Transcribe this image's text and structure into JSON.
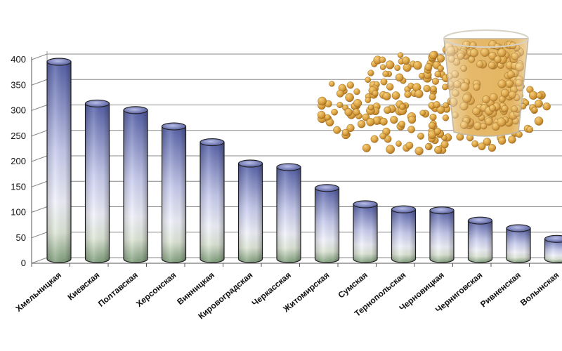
{
  "chart_data": {
    "type": "bar",
    "style": "3d-cylinder",
    "grid": true,
    "legend": "none",
    "ylim": [
      0,
      400
    ],
    "yticks": [
      "0",
      "50",
      "100",
      "150",
      "200",
      "250",
      "300",
      "350",
      "400"
    ],
    "categories": [
      "Хмельницкая",
      "Киевская",
      "Полтавская",
      "Херсонская",
      "Винницкая",
      "Кировоградская",
      "Черкасская",
      "Житомирская",
      "Сумская",
      "Тернопольская",
      "Черновицкая",
      "Черниговская",
      "Ривненская",
      "Волынская"
    ],
    "values": [
      400,
      318,
      305,
      273,
      242,
      200,
      193,
      152,
      120,
      110,
      108,
      88,
      73,
      52
    ],
    "colors": {
      "bar_top": "#5560a8",
      "bar_mid": "#eef0fb",
      "bar_base": "#7f9e7b",
      "grid": "#888888",
      "outline": "#222222"
    },
    "decoration": "photo of soybeans in a plastic cup (upper right)"
  }
}
